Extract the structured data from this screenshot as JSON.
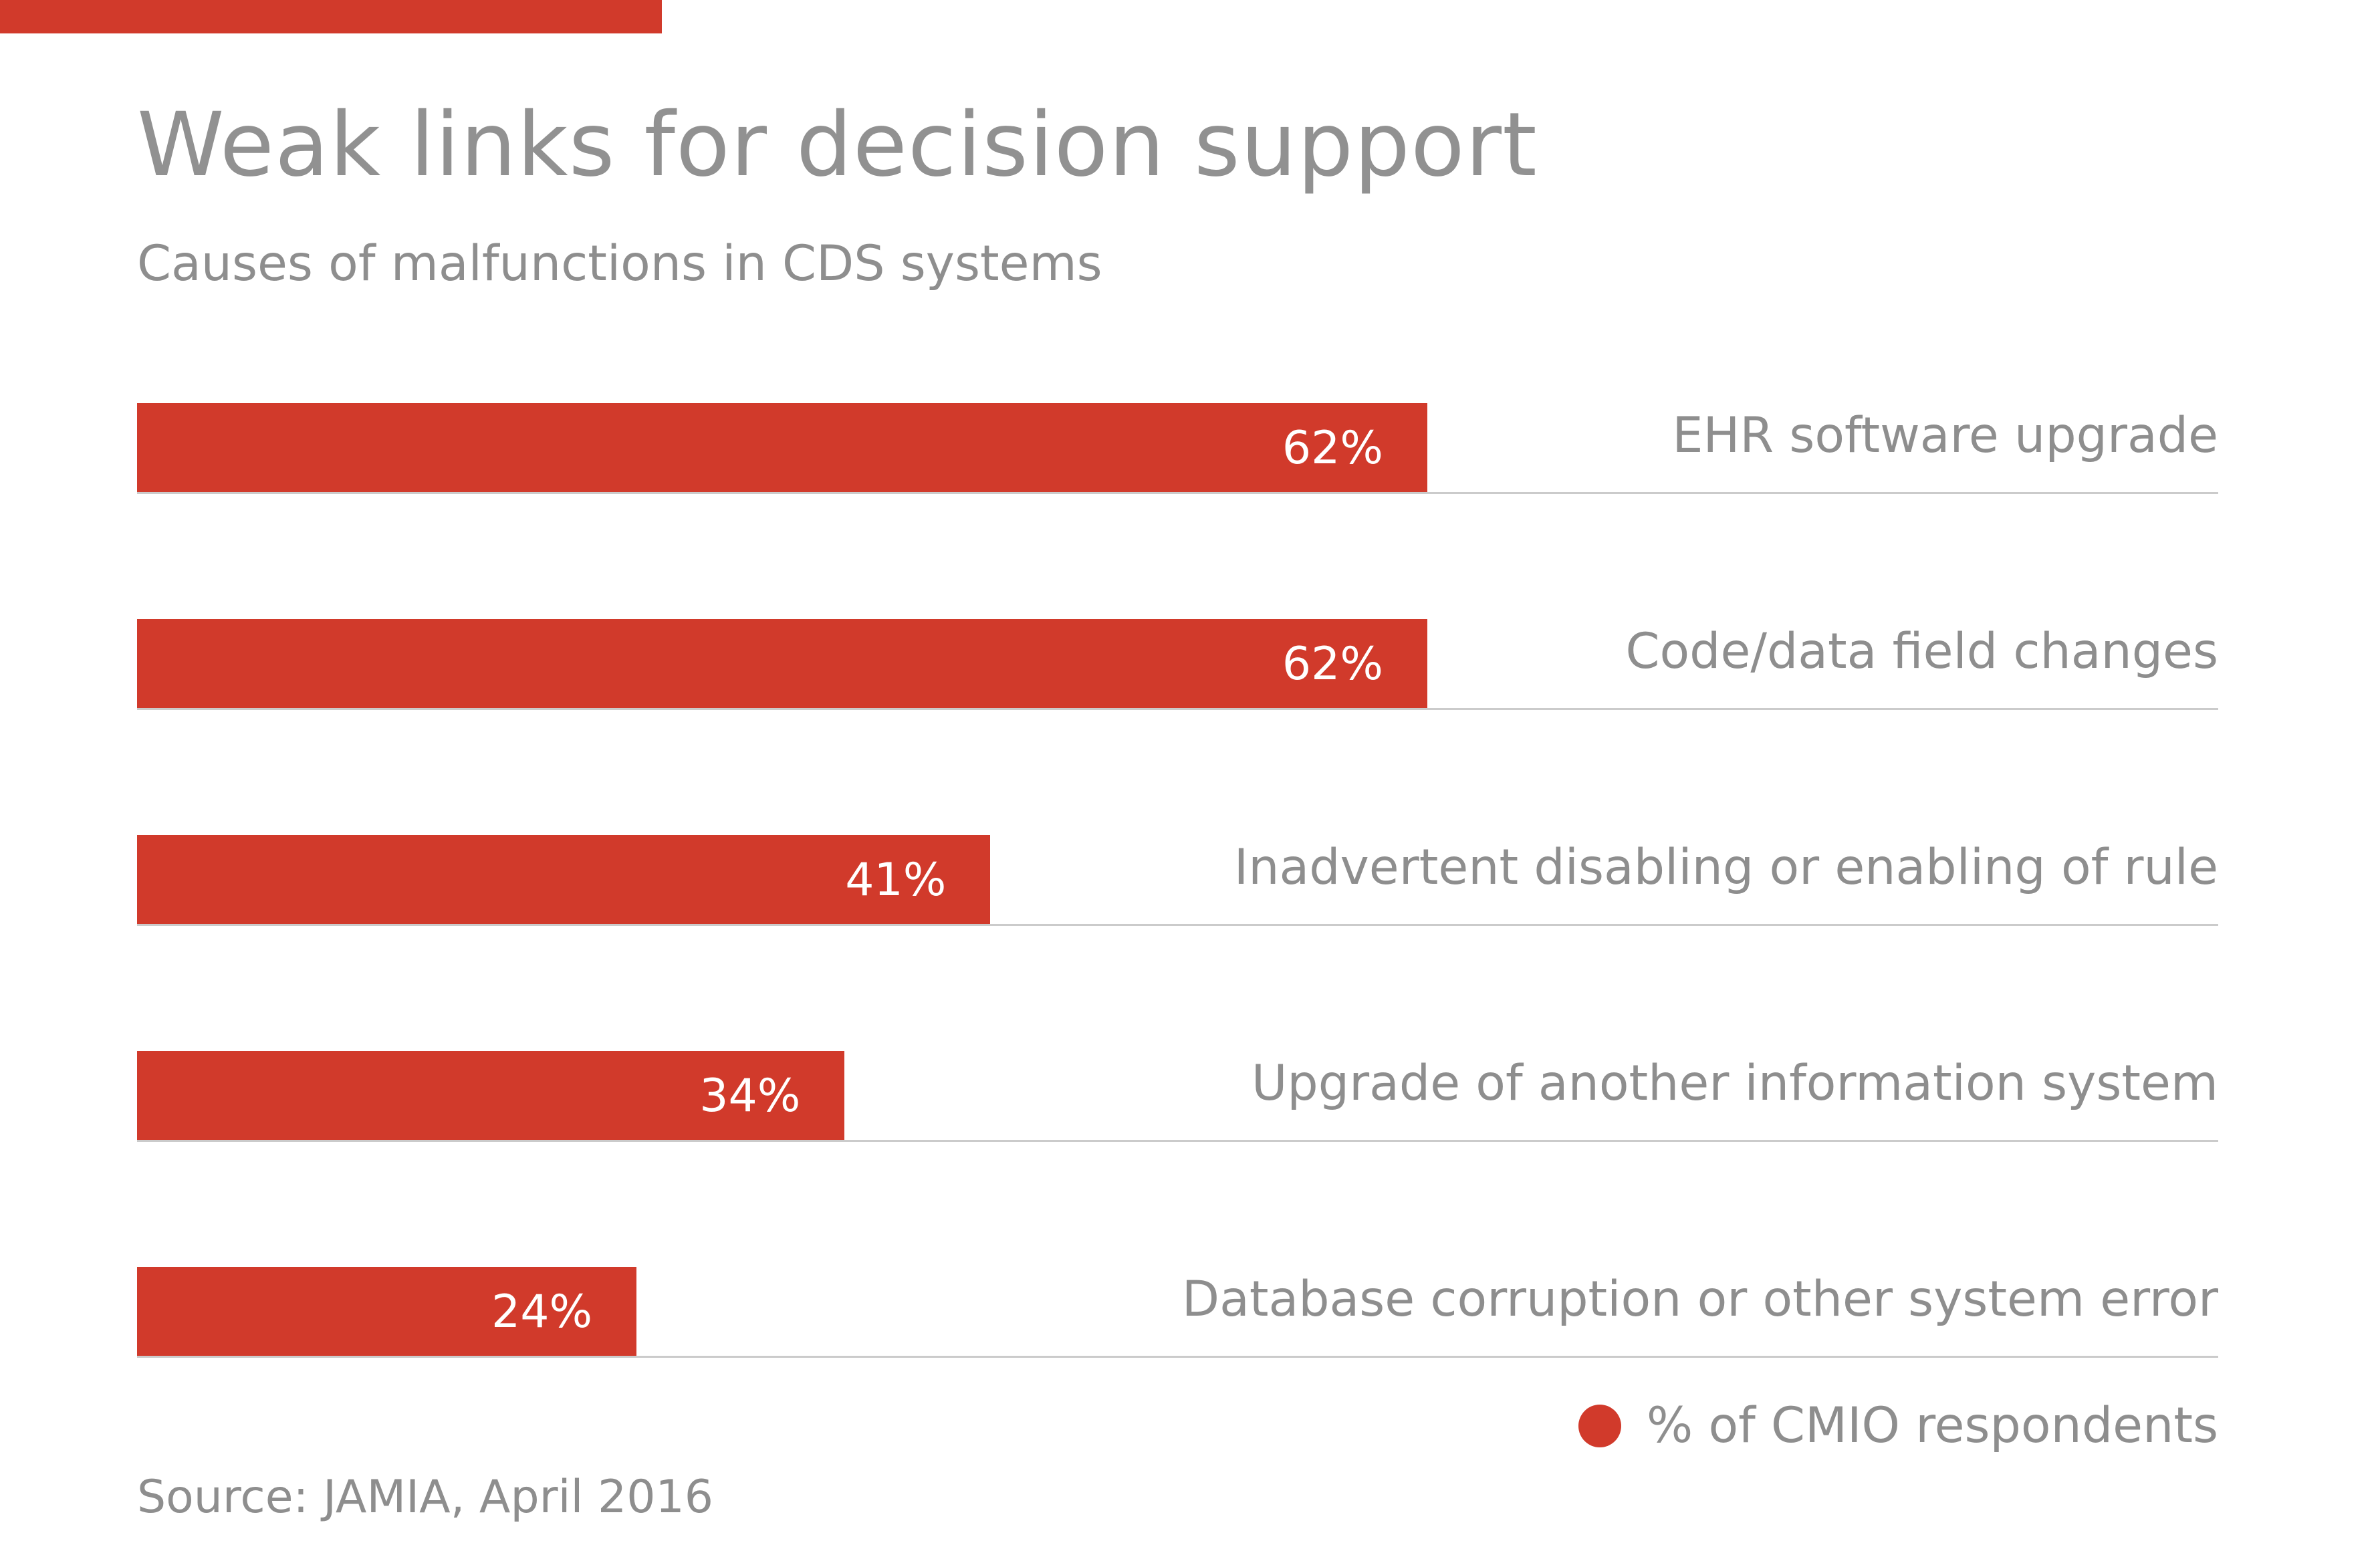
{
  "chart_data": {
    "type": "bar",
    "orientation": "horizontal",
    "title": "Weak links for decision support",
    "subtitle": "Causes of malfunctions in CDS systems",
    "categories": [
      "EHR software upgrade",
      "Code/data field changes",
      "Inadvertent disabling or enabling of rule",
      "Upgrade of another information system",
      "Database corruption or other system error"
    ],
    "values": [
      62,
      62,
      41,
      34,
      24
    ],
    "value_labels": [
      "62%",
      "62%",
      "41%",
      "34%",
      "24%"
    ],
    "xlim": [
      0,
      100
    ],
    "grid": false,
    "legend": {
      "position": "bottom-right",
      "label": "% of CMIO respondents"
    },
    "source": "Source: JAMIA, April 2016",
    "colors": {
      "bar": "#d13a2b",
      "accent": "#d13a2b",
      "text": "#8e8e8e",
      "value_text": "#ffffff",
      "rule_line": "#cbcbcb"
    }
  }
}
